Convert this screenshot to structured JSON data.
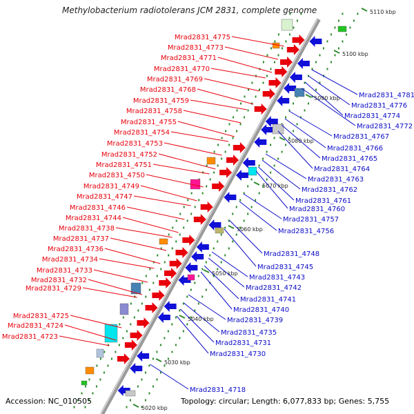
{
  "title": "Methylobacterium radiotolerans JCM 2831, complete genome",
  "accession": "Accession: NC_010505",
  "topology": "Topology: circular; Length: 6,077,833 bp; Genes: 5,755",
  "colors": {
    "forward_label": "#e8000b",
    "reverse_label": "#0a0ac8",
    "backbone": "#9a9a9a",
    "tick": "#2e8b2e"
  },
  "kbp_ticks": [
    "5020 kbp",
    "5030 kbp",
    "5040 kbp",
    "5050 kbp",
    "5060 kbp",
    "5070 kbp",
    "5080 kbp",
    "5090 kbp",
    "5100 kbp",
    "5110 kbp"
  ],
  "forward_labels": [
    "Mrad2831_4775",
    "Mrad2831_4773",
    "Mrad2831_4771",
    "Mrad2831_4770",
    "Mrad2831_4769",
    "Mrad2831_4768",
    "Mrad2831_4759",
    "Mrad2831_4758",
    "Mrad2831_4755",
    "Mrad2831_4754",
    "Mrad2831_4753",
    "Mrad2831_4752",
    "Mrad2831_4751",
    "Mrad2831_4750",
    "Mrad2831_4749",
    "Mrad2831_4747",
    "Mrad2831_4746",
    "Mrad2831_4744",
    "Mrad2831_4738",
    "Mrad2831_4737",
    "Mrad2831_4736",
    "Mrad2831_4734",
    "Mrad2831_4733",
    "Mrad2831_4732",
    "Mrad2831_4729",
    "Mrad2831_4725",
    "Mrad2831_4724",
    "Mrad2831_4723"
  ],
  "reverse_labels": [
    "Mrad2831_4781",
    "Mrad2831_4776",
    "Mrad2831_4774",
    "Mrad2831_4772",
    "Mrad2831_4767",
    "Mrad2831_4766",
    "Mrad2831_4765",
    "Mrad2831_4764",
    "Mrad2831_4763",
    "Mrad2831_4762",
    "Mrad2831_4761",
    "Mrad2831_4760",
    "Mrad2831_4757",
    "Mrad2831_4756",
    "Mrad2831_4748",
    "Mrad2831_4745",
    "Mrad2831_4743",
    "Mrad2831_4742",
    "Mrad2831_4741",
    "Mrad2831_4740",
    "Mrad2831_4739",
    "Mrad2831_4735",
    "Mrad2831_4731",
    "Mrad2831_4730",
    "Mrad2831_4718"
  ]
}
